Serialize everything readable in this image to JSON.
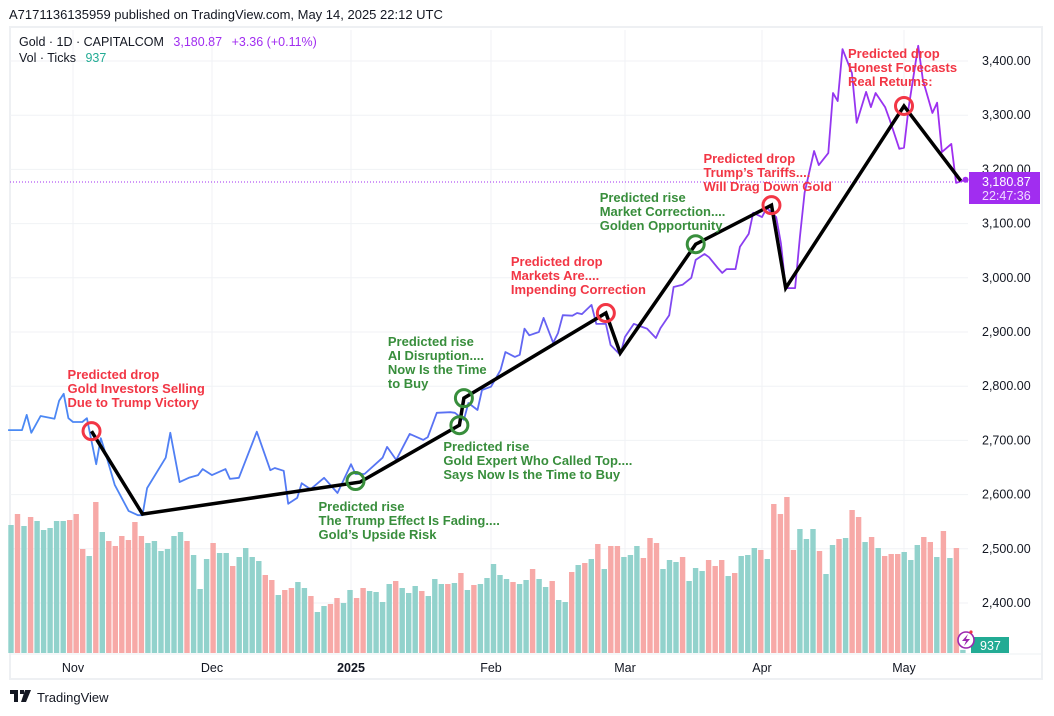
{
  "published_line": "A7171136135959 published on TradingView.com, May 14, 2025 22:12 UTC",
  "legend": {
    "symbol": "Gold · 1D · CAPITALCOM",
    "price": "3,180.87",
    "change": "+3.36 (+0.11%)",
    "volume_label": "Vol · Ticks",
    "volume_value": "937"
  },
  "price_label": {
    "price": "3,180.87",
    "countdown": "22:47:36"
  },
  "volume_label_badge": "937",
  "footer": {
    "brand": "TradingView"
  },
  "colors": {
    "line_start": "#4a8af4",
    "line_end": "#a12df0",
    "volume_up": "#92d2cc",
    "volume_down": "#f7a9a7",
    "drop": "#f23645",
    "rise": "#388e3c",
    "trend": "#000000",
    "price_badge": "#a12df0",
    "volume_badge": "#22ab94"
  },
  "chart_data": {
    "type": "line",
    "grid": true,
    "price_scale": "right",
    "ylim": [
      2330,
      3460
    ],
    "y_ticks": [
      "2,400.00",
      "2,500.00",
      "2,600.00",
      "2,700.00",
      "2,800.00",
      "2,900.00",
      "3,000.00",
      "3,100.00",
      "3,200.00",
      "3,300.00",
      "3,400.00"
    ],
    "y_tick_values": [
      2400,
      2500,
      2600,
      2700,
      2800,
      2900,
      3000,
      3100,
      3200,
      3300,
      3400
    ],
    "x_ticks": [
      {
        "label": "Nov",
        "date": "2024-11-01"
      },
      {
        "label": "Dec",
        "date": "2024-12-01"
      },
      {
        "label": "2025",
        "date": "2025-01-01",
        "bold": true
      },
      {
        "label": "Feb",
        "date": "2025-02-01"
      },
      {
        "label": "Mar",
        "date": "2025-03-01"
      },
      {
        "label": "Apr",
        "date": "2025-04-01"
      },
      {
        "label": "May",
        "date": "2025-05-01"
      }
    ],
    "last_price": 3180.87,
    "price_series": [
      [
        "2024-10-18",
        2719
      ],
      [
        "2024-10-21",
        2719
      ],
      [
        "2024-10-22",
        2747
      ],
      [
        "2024-10-23",
        2714
      ],
      [
        "2024-10-25",
        2745
      ],
      [
        "2024-10-28",
        2740
      ],
      [
        "2024-10-29",
        2773
      ],
      [
        "2024-10-30",
        2786
      ],
      [
        "2024-10-31",
        2741
      ],
      [
        "2024-11-01",
        2734
      ],
      [
        "2024-11-03",
        2734
      ],
      [
        "2024-11-04",
        2741
      ],
      [
        "2024-11-06",
        2656
      ],
      [
        "2024-11-07",
        2704
      ],
      [
        "2024-11-08",
        2677
      ],
      [
        "2024-11-10",
        2618
      ],
      [
        "2024-11-13",
        2570
      ],
      [
        "2024-11-15",
        2562
      ],
      [
        "2024-11-16",
        2562
      ],
      [
        "2024-11-17",
        2612
      ],
      [
        "2024-11-21",
        2668
      ],
      [
        "2024-11-22",
        2714
      ],
      [
        "2024-11-24",
        2623
      ],
      [
        "2024-11-26",
        2631
      ],
      [
        "2024-11-28",
        2636
      ],
      [
        "2024-11-29",
        2647
      ],
      [
        "2024-12-01",
        2636
      ],
      [
        "2024-12-04",
        2647
      ],
      [
        "2024-12-05",
        2629
      ],
      [
        "2024-12-07",
        2631
      ],
      [
        "2024-12-11",
        2716
      ],
      [
        "2024-12-14",
        2645
      ],
      [
        "2024-12-15",
        2649
      ],
      [
        "2024-12-17",
        2644
      ],
      [
        "2024-12-18",
        2583
      ],
      [
        "2024-12-20",
        2594
      ],
      [
        "2024-12-21",
        2621
      ],
      [
        "2024-12-23",
        2610
      ],
      [
        "2024-12-26",
        2631
      ],
      [
        "2024-12-29",
        2603
      ],
      [
        "2025-01-01",
        2656
      ],
      [
        "2025-01-02",
        2638
      ],
      [
        "2025-01-04",
        2638
      ],
      [
        "2025-01-08",
        2668
      ],
      [
        "2025-01-09",
        2688
      ],
      [
        "2025-01-11",
        2664
      ],
      [
        "2025-01-14",
        2712
      ],
      [
        "2025-01-17",
        2701
      ],
      [
        "2025-01-18",
        2706
      ],
      [
        "2025-01-20",
        2751
      ],
      [
        "2025-01-23",
        2752
      ],
      [
        "2025-01-24",
        2751
      ],
      [
        "2025-01-26",
        2738
      ],
      [
        "2025-01-27",
        2769
      ],
      [
        "2025-01-29",
        2756
      ],
      [
        "2025-01-30",
        2793
      ],
      [
        "2025-02-01",
        2799
      ],
      [
        "2025-02-03",
        2830
      ],
      [
        "2025-02-04",
        2863
      ],
      [
        "2025-02-06",
        2854
      ],
      [
        "2025-02-07",
        2858
      ],
      [
        "2025-02-08",
        2906
      ],
      [
        "2025-02-09",
        2894
      ],
      [
        "2025-02-11",
        2900
      ],
      [
        "2025-02-12",
        2926
      ],
      [
        "2025-02-14",
        2880
      ],
      [
        "2025-02-15",
        2898
      ],
      [
        "2025-02-16",
        2931
      ],
      [
        "2025-02-18",
        2930
      ],
      [
        "2025-02-19",
        2935
      ],
      [
        "2025-02-20",
        2933
      ],
      [
        "2025-02-22",
        2950
      ],
      [
        "2025-02-23",
        2915
      ],
      [
        "2025-02-25",
        2915
      ],
      [
        "2025-02-26",
        2876
      ],
      [
        "2025-02-28",
        2858
      ],
      [
        "2025-03-01",
        2891
      ],
      [
        "2025-03-03",
        2915
      ],
      [
        "2025-03-05",
        2909
      ],
      [
        "2025-03-06",
        2906
      ],
      [
        "2025-03-08",
        2889
      ],
      [
        "2025-03-09",
        2907
      ],
      [
        "2025-03-11",
        2931
      ],
      [
        "2025-03-12",
        2983
      ],
      [
        "2025-03-14",
        2987
      ],
      [
        "2025-03-16",
        3000
      ],
      [
        "2025-03-17",
        3033
      ],
      [
        "2025-03-19",
        3044
      ],
      [
        "2025-03-20",
        3038
      ],
      [
        "2025-03-22",
        3018
      ],
      [
        "2025-03-23",
        3009
      ],
      [
        "2025-03-24",
        3016
      ],
      [
        "2025-03-26",
        3016
      ],
      [
        "2025-03-27",
        3057
      ],
      [
        "2025-03-29",
        3081
      ],
      [
        "2025-03-30",
        3120
      ],
      [
        "2025-04-01",
        3112
      ],
      [
        "2025-04-02",
        3129
      ],
      [
        "2025-04-04",
        3112
      ],
      [
        "2025-04-05",
        3064
      ],
      [
        "2025-04-06",
        2981
      ],
      [
        "2025-04-08",
        2981
      ],
      [
        "2025-04-09",
        3075
      ],
      [
        "2025-04-10",
        3157
      ],
      [
        "2025-04-12",
        3234
      ],
      [
        "2025-04-13",
        3208
      ],
      [
        "2025-04-15",
        3230
      ],
      [
        "2025-04-16",
        3341
      ],
      [
        "2025-04-17",
        3326
      ],
      [
        "2025-04-18",
        3422
      ],
      [
        "2025-04-20",
        3378
      ],
      [
        "2025-04-21",
        3286
      ],
      [
        "2025-04-23",
        3343
      ],
      [
        "2025-04-24",
        3315
      ],
      [
        "2025-04-25",
        3341
      ],
      [
        "2025-04-27",
        3315
      ],
      [
        "2025-04-28",
        3291
      ],
      [
        "2025-04-30",
        3238
      ],
      [
        "2025-05-01",
        3240
      ],
      [
        "2025-05-02",
        3315
      ],
      [
        "2025-05-04",
        3428
      ],
      [
        "2025-05-05",
        3365
      ],
      [
        "2025-05-07",
        3304
      ],
      [
        "2025-05-08",
        3323
      ],
      [
        "2025-05-09",
        3232
      ],
      [
        "2025-05-11",
        3247
      ],
      [
        "2025-05-12",
        3175
      ],
      [
        "2025-05-14",
        3180.87
      ]
    ],
    "volume_ticks": [
      38400,
      41700,
      38100,
      40800,
      39600,
      36900,
      37500,
      39600,
      39600,
      39900,
      41700,
      31200,
      29100,
      45300,
      36300,
      33600,
      32100,
      35100,
      33900,
      39300,
      35100,
      33000,
      33600,
      30600,
      31200,
      35100,
      36300,
      33600,
      29400,
      19200,
      28200,
      33000,
      30000,
      30000,
      26100,
      28800,
      31500,
      28800,
      27600,
      23400,
      21900,
      17400,
      18900,
      19500,
      21300,
      19500,
      17100,
      12300,
      14100,
      14700,
      16500,
      15000,
      18900,
      16500,
      19500,
      18600,
      18300,
      15300,
      20700,
      21600,
      19500,
      18000,
      20100,
      18600,
      17100,
      22200,
      20700,
      20700,
      21000,
      24000,
      18900,
      20400,
      20700,
      22500,
      26700,
      23400,
      22200,
      21300,
      20700,
      21900,
      25200,
      22200,
      19800,
      21600,
      15900,
      15300,
      24300,
      26400,
      27000,
      28200,
      32700,
      25200,
      32100,
      32100,
      28800,
      29400,
      32100,
      28500,
      34500,
      33000,
      25200,
      27900,
      27300,
      28800,
      21600,
      25500,
      24600,
      27900,
      26100,
      27900,
      23100,
      24000,
      29100,
      29400,
      31500,
      30900,
      28200,
      44700,
      41700,
      46800,
      30900,
      37200,
      34200,
      37200,
      30600,
      23700,
      32400,
      34200,
      34500,
      42900,
      40800,
      33300,
      34800,
      31500,
      29100,
      29700,
      29700,
      30300,
      27900,
      32400,
      34800,
      33300,
      28800,
      36600,
      28500,
      31500,
      937
    ],
    "volume_direction": "grgrgggggrrrgrgrrrrrrggggggrgggrggrggggrrgrrggrggrrggrrggggrgggrgggrgrgrgggggrggrggrggrgrgrgrrgggrrrgggrgggrrrgrgggrgrrrrgggrggrgrrgrgrrrgggrrgrgrg",
    "trend_line": [
      [
        "2024-11-05",
        2717
      ],
      [
        "2024-11-16",
        2564
      ],
      [
        "2025-01-03",
        2623
      ],
      [
        "2025-01-25",
        2728
      ],
      [
        "2025-01-26",
        2778
      ],
      [
        "2025-02-25",
        2935
      ],
      [
        "2025-02-28",
        2861
      ],
      [
        "2025-03-17",
        3062
      ],
      [
        "2025-04-03",
        3134
      ],
      [
        "2025-04-06",
        2981
      ],
      [
        "2025-05-01",
        3317
      ],
      [
        "2025-05-13",
        3179
      ]
    ],
    "annotations": [
      {
        "kind": "drop",
        "date": "2024-11-05",
        "price": 2717,
        "lines": [
          "Predicted drop",
          "Gold Investors Selling",
          "Due to Trump Victory"
        ]
      },
      {
        "kind": "rise",
        "date": "2025-01-02",
        "price": 2625,
        "lines": [
          "Predicted rise",
          "The Trump Effect Is Fading....",
          "Gold’s Upside Risk"
        ]
      },
      {
        "kind": "rise",
        "date": "2025-01-25",
        "price": 2728,
        "lines": [
          "Predicted rise",
          "Gold Expert Who Called Top....",
          "Says Now Is the Time to Buy"
        ]
      },
      {
        "kind": "rise",
        "date": "2025-01-26",
        "price": 2778,
        "lines": [
          "Predicted rise",
          "AI Disruption....",
          "Now Is the Time",
          "to Buy"
        ]
      },
      {
        "kind": "drop",
        "date": "2025-02-25",
        "price": 2935,
        "lines": [
          "Predicted drop",
          "Markets Are....",
          "Impending Correction"
        ]
      },
      {
        "kind": "rise",
        "date": "2025-03-17",
        "price": 3062,
        "lines": [
          "Predicted rise",
          "Market Correction....",
          "Golden Opportunity"
        ]
      },
      {
        "kind": "drop",
        "date": "2025-04-03",
        "price": 3134,
        "lines": [
          "Predicted drop",
          "Trump’s Tariffs....",
          "Will Drag Down Gold"
        ]
      },
      {
        "kind": "drop",
        "date": "2025-05-01",
        "price": 3317,
        "lines": [
          "Predicted drop",
          "Honest Forecasts",
          "Real Returns:"
        ]
      }
    ]
  }
}
